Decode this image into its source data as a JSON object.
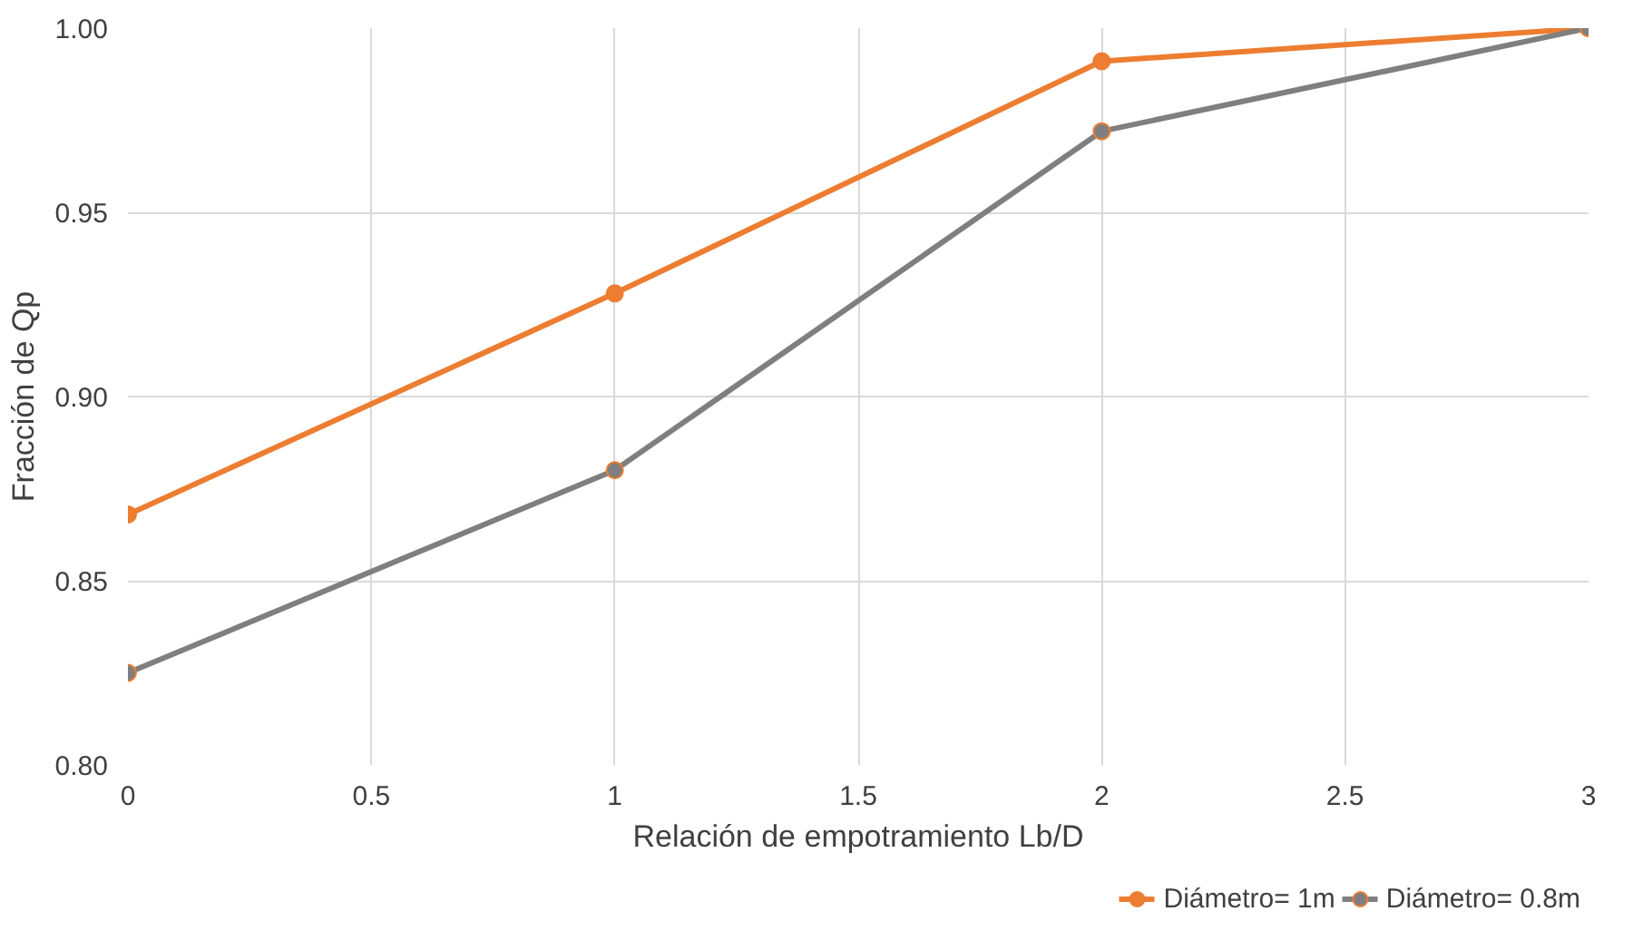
{
  "chart_data": {
    "type": "line",
    "xlabel": "Relación de empotramiento Lb/D",
    "ylabel": "Fracción de Qp",
    "x": [
      0,
      1,
      2,
      3
    ],
    "series": [
      {
        "name": "Diámetro= 1m",
        "color": "#ed7d31",
        "values": [
          0.868,
          0.928,
          0.991,
          1.0
        ]
      },
      {
        "name": "Diámetro= 0.8m",
        "color": "#7f7f7f",
        "values": [
          0.825,
          0.88,
          0.972,
          1.0
        ]
      }
    ],
    "xlim": [
      0,
      3
    ],
    "ylim": [
      0.8,
      1.0
    ],
    "xticks": [
      0,
      {
        "value": 0.5,
        "label": "0.5"
      },
      1,
      {
        "value": 1.5,
        "label": "1.5"
      },
      2,
      {
        "value": 2.5,
        "label": "2.5"
      },
      3
    ],
    "yticks": [
      {
        "value": 0.8,
        "label": "0.80"
      },
      {
        "value": 0.85,
        "label": "0.85"
      },
      {
        "value": 0.9,
        "label": "0.90"
      },
      {
        "value": 0.95,
        "label": "0.95"
      },
      {
        "value": 1.0,
        "label": "1.00"
      }
    ],
    "grid": true,
    "legend": "bottom",
    "marker": "circle",
    "line_style": "solid"
  }
}
